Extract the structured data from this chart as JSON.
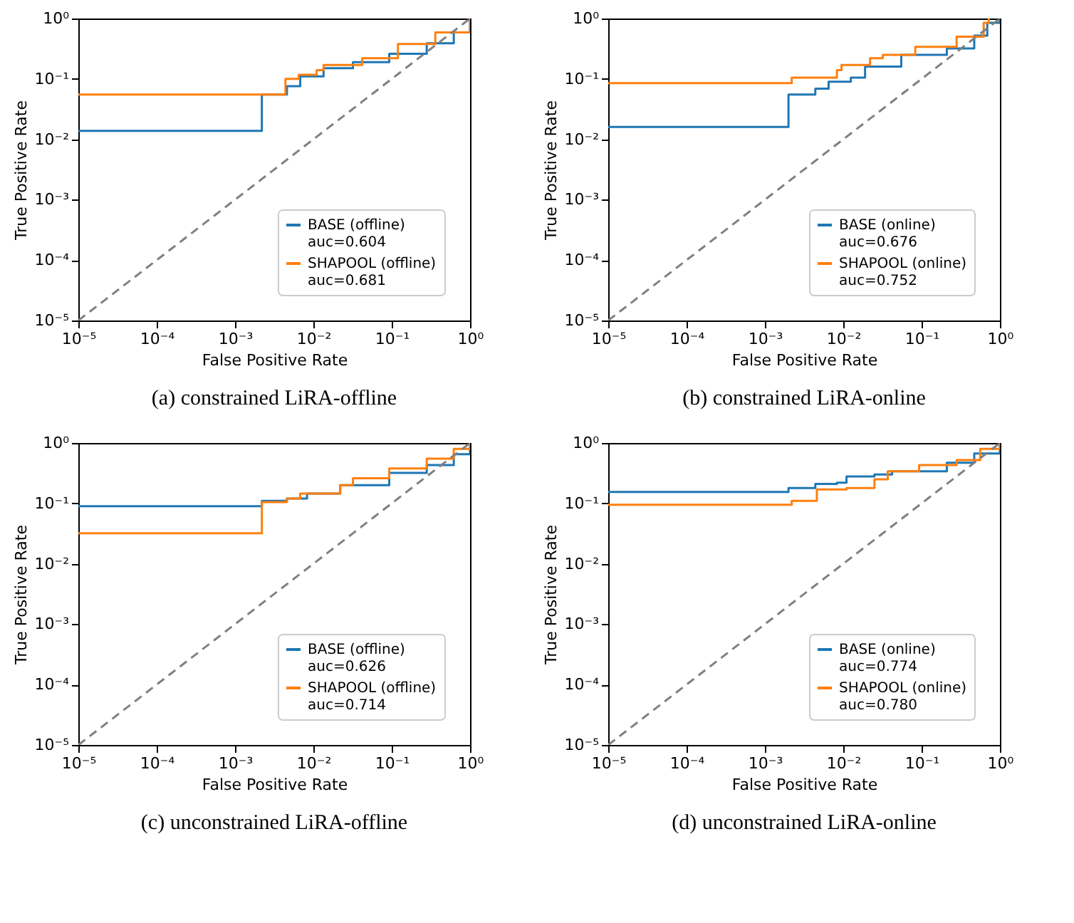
{
  "chart_data": [
    {
      "type": "step",
      "title": "(a) constrained LiRA-offline",
      "xlabel": "False Positive Rate",
      "ylabel": "True Positive Rate",
      "log": "xy",
      "grid": false,
      "legend": "bottom right",
      "xlim": [
        1e-05,
        1
      ],
      "ylim": [
        1e-05,
        1
      ],
      "xticks": [
        {
          "value": 1e-05,
          "label": "10⁻⁵"
        },
        {
          "value": 0.0001,
          "label": "10⁻⁴"
        },
        {
          "value": 0.001,
          "label": "10⁻³"
        },
        {
          "value": 0.01,
          "label": "10⁻²"
        },
        {
          "value": 0.1,
          "label": "10⁻¹"
        },
        {
          "value": 1,
          "label": "10⁰"
        }
      ],
      "yticks": [
        {
          "value": 1e-05,
          "label": "10⁻⁵"
        },
        {
          "value": 0.0001,
          "label": "10⁻⁴"
        },
        {
          "value": 0.001,
          "label": "10⁻³"
        },
        {
          "value": 0.01,
          "label": "10⁻²"
        },
        {
          "value": 0.1,
          "label": "10⁻¹"
        },
        {
          "value": 1,
          "label": "10⁰"
        }
      ],
      "series": [
        {
          "name": "BASE (offline)\nauc=0.604",
          "color": "#1f77b4",
          "x": [
            1e-05,
            0.0022,
            0.0046,
            0.0068,
            0.0135,
            0.032,
            0.093,
            0.28,
            0.62,
            1
          ],
          "values": [
            0.0138,
            0.055,
            0.076,
            0.11,
            0.15,
            0.19,
            0.26,
            0.39,
            0.59,
            1
          ]
        },
        {
          "name": "SHAPOOL (offline)\nauc=0.681",
          "color": "#ff7f0e",
          "x": [
            1e-05,
            0.0044,
            0.0065,
            0.011,
            0.0135,
            0.042,
            0.12,
            0.36,
            1
          ],
          "values": [
            0.055,
            0.1,
            0.117,
            0.14,
            0.17,
            0.22,
            0.38,
            0.59,
            1
          ]
        },
        {
          "type": "line",
          "color": "#808080",
          "line_style": "dashed",
          "x": [
            1e-05,
            1
          ],
          "values": [
            1e-05,
            1
          ]
        }
      ]
    },
    {
      "type": "step",
      "title": "(b) constrained LiRA-online",
      "xlabel": "False Positive Rate",
      "ylabel": "True Positive Rate",
      "log": "xy",
      "grid": false,
      "legend": "bottom right",
      "xlim": [
        1e-05,
        1
      ],
      "ylim": [
        1e-05,
        1
      ],
      "xticks": [
        {
          "value": 1e-05,
          "label": "10⁻⁵"
        },
        {
          "value": 0.0001,
          "label": "10⁻⁴"
        },
        {
          "value": 0.001,
          "label": "10⁻³"
        },
        {
          "value": 0.01,
          "label": "10⁻²"
        },
        {
          "value": 0.1,
          "label": "10⁻¹"
        },
        {
          "value": 1,
          "label": "10⁰"
        }
      ],
      "yticks": [
        {
          "value": 1e-05,
          "label": "10⁻⁵"
        },
        {
          "value": 0.0001,
          "label": "10⁻⁴"
        },
        {
          "value": 0.001,
          "label": "10⁻³"
        },
        {
          "value": 0.01,
          "label": "10⁻²"
        },
        {
          "value": 0.1,
          "label": "10⁻¹"
        },
        {
          "value": 1,
          "label": "10⁰"
        }
      ],
      "series": [
        {
          "name": "BASE (online)\nauc=0.676",
          "color": "#1f77b4",
          "x": [
            1e-05,
            0.002,
            0.0044,
            0.0065,
            0.0125,
            0.019,
            0.055,
            0.21,
            0.47,
            0.69,
            1
          ],
          "values": [
            0.016,
            0.055,
            0.069,
            0.09,
            0.105,
            0.16,
            0.25,
            0.32,
            0.52,
            0.85,
            1
          ]
        },
        {
          "name": "SHAPOOL (online)\nauc=0.752",
          "color": "#ff7f0e",
          "x": [
            1e-05,
            0.0022,
            0.0083,
            0.0095,
            0.022,
            0.032,
            0.083,
            0.28,
            0.62,
            0.72
          ],
          "values": [
            0.085,
            0.105,
            0.14,
            0.17,
            0.22,
            0.25,
            0.34,
            0.5,
            0.85,
            1
          ]
        },
        {
          "type": "line",
          "color": "#808080",
          "line_style": "dashed",
          "x": [
            1e-05,
            1
          ],
          "values": [
            1e-05,
            1
          ]
        }
      ]
    },
    {
      "type": "step",
      "title": "(c) unconstrained LiRA-offline",
      "xlabel": "False Positive Rate",
      "ylabel": "True Positive Rate",
      "log": "xy",
      "grid": false,
      "legend": "bottom right",
      "xlim": [
        1e-05,
        1
      ],
      "ylim": [
        1e-05,
        1
      ],
      "xticks": [
        {
          "value": 1e-05,
          "label": "10⁻⁵"
        },
        {
          "value": 0.0001,
          "label": "10⁻⁴"
        },
        {
          "value": 0.001,
          "label": "10⁻³"
        },
        {
          "value": 0.01,
          "label": "10⁻²"
        },
        {
          "value": 0.1,
          "label": "10⁻¹"
        },
        {
          "value": 1,
          "label": "10⁰"
        }
      ],
      "yticks": [
        {
          "value": 1e-05,
          "label": "10⁻⁵"
        },
        {
          "value": 0.0001,
          "label": "10⁻⁴"
        },
        {
          "value": 0.001,
          "label": "10⁻³"
        },
        {
          "value": 0.01,
          "label": "10⁻²"
        },
        {
          "value": 0.1,
          "label": "10⁻¹"
        },
        {
          "value": 1,
          "label": "10⁰"
        }
      ],
      "series": [
        {
          "name": "BASE (offline)\nauc=0.626",
          "color": "#1f77b4",
          "x": [
            1e-05,
            0.0022,
            0.0046,
            0.0083,
            0.022,
            0.093,
            0.28,
            0.62,
            1
          ],
          "values": [
            0.09,
            0.11,
            0.12,
            0.145,
            0.2,
            0.32,
            0.43,
            0.65,
            1
          ]
        },
        {
          "name": "SHAPOOL (offline)\nauc=0.714",
          "color": "#ff7f0e",
          "x": [
            1e-05,
            0.0022,
            0.0046,
            0.0068,
            0.022,
            0.032,
            0.093,
            0.28,
            0.62,
            1
          ],
          "values": [
            0.032,
            0.105,
            0.12,
            0.145,
            0.2,
            0.26,
            0.38,
            0.55,
            0.8,
            1
          ]
        },
        {
          "type": "line",
          "color": "#808080",
          "line_style": "dashed",
          "x": [
            1e-05,
            1
          ],
          "values": [
            1e-05,
            1
          ]
        }
      ]
    },
    {
      "type": "step",
      "title": "(d) unconstrained LiRA-online",
      "xlabel": "False Positive Rate",
      "ylabel": "True Positive Rate",
      "log": "xy",
      "grid": false,
      "legend": "bottom right",
      "xlim": [
        1e-05,
        1
      ],
      "ylim": [
        1e-05,
        1
      ],
      "xticks": [
        {
          "value": 1e-05,
          "label": "10⁻⁵"
        },
        {
          "value": 0.0001,
          "label": "10⁻⁴"
        },
        {
          "value": 0.001,
          "label": "10⁻³"
        },
        {
          "value": 0.01,
          "label": "10⁻²"
        },
        {
          "value": 0.1,
          "label": "10⁻¹"
        },
        {
          "value": 1,
          "label": "10⁰"
        }
      ],
      "yticks": [
        {
          "value": 1e-05,
          "label": "10⁻⁵"
        },
        {
          "value": 0.0001,
          "label": "10⁻⁴"
        },
        {
          "value": 0.001,
          "label": "10⁻³"
        },
        {
          "value": 0.01,
          "label": "10⁻²"
        },
        {
          "value": 0.1,
          "label": "10⁻¹"
        },
        {
          "value": 1,
          "label": "10⁰"
        }
      ],
      "series": [
        {
          "name": "BASE (online)\nauc=0.774",
          "color": "#1f77b4",
          "x": [
            1e-05,
            0.002,
            0.0044,
            0.0083,
            0.011,
            0.025,
            0.042,
            0.21,
            0.47,
            1
          ],
          "values": [
            0.155,
            0.18,
            0.21,
            0.22,
            0.28,
            0.3,
            0.34,
            0.47,
            0.67,
            1
          ]
        },
        {
          "name": "SHAPOOL (online)\nauc=0.780",
          "color": "#ff7f0e",
          "x": [
            1e-05,
            0.0022,
            0.0046,
            0.011,
            0.025,
            0.037,
            0.093,
            0.28,
            0.56,
            1
          ],
          "values": [
            0.095,
            0.11,
            0.17,
            0.18,
            0.25,
            0.34,
            0.43,
            0.52,
            0.8,
            1
          ]
        },
        {
          "type": "line",
          "color": "#808080",
          "line_style": "dashed",
          "x": [
            1e-05,
            1
          ],
          "values": [
            1e-05,
            1
          ]
        }
      ]
    }
  ]
}
